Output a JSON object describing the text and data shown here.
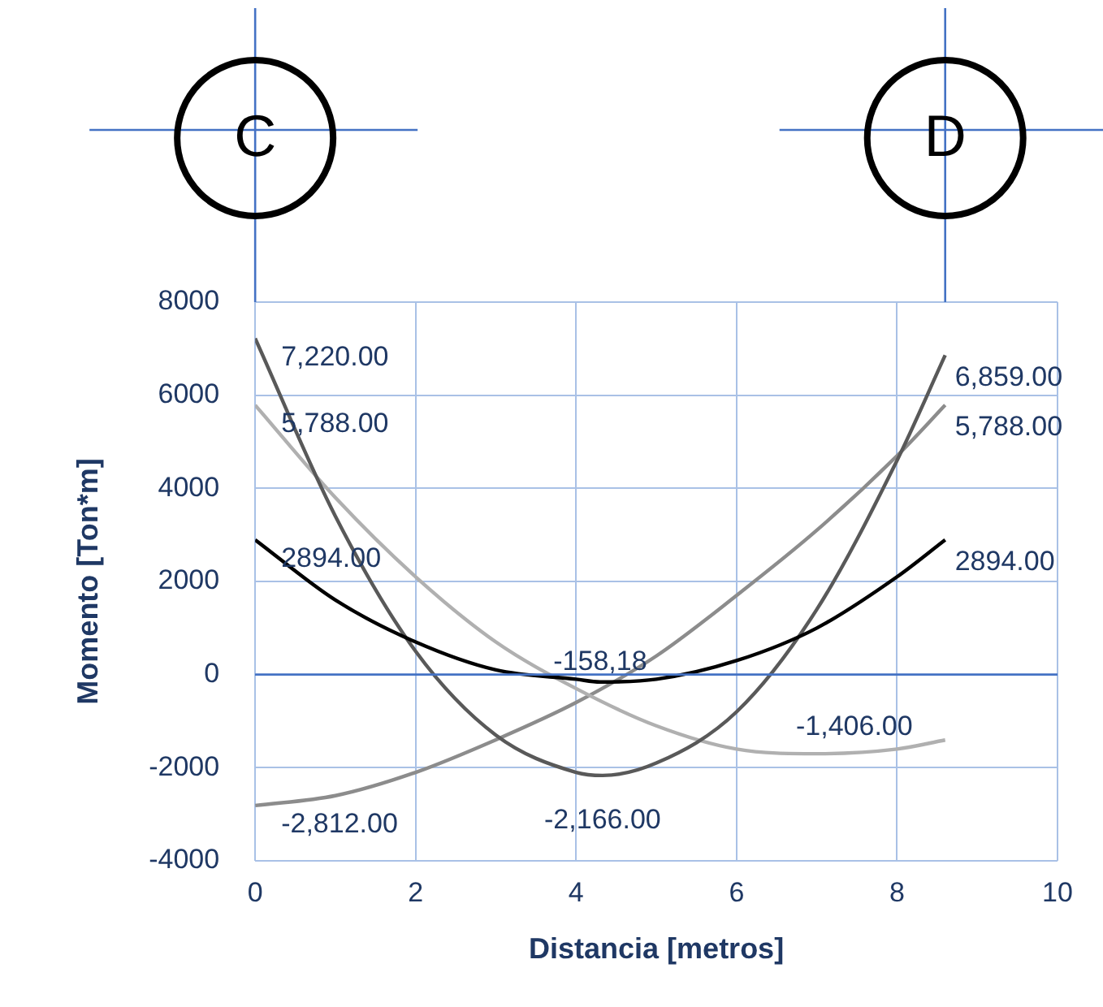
{
  "chart_data": {
    "type": "line",
    "xlabel": "Distancia [metros]",
    "ylabel": "Momento [Ton*m]",
    "xlim": [
      0,
      10
    ],
    "xticks": [
      0,
      2,
      4,
      6,
      8,
      10
    ],
    "ylim": [
      -4000,
      8000
    ],
    "yticks": [
      -4000,
      -2000,
      0,
      2000,
      4000,
      6000,
      8000
    ],
    "grid": true,
    "legend": false,
    "marker": "none",
    "line_style": "solid",
    "ref_lines": [
      {
        "axis": "x",
        "value": 0,
        "label": "C"
      },
      {
        "axis": "x",
        "value": 8.6,
        "label": "D"
      },
      {
        "axis": "y",
        "value": 0,
        "color": "#4472c4"
      }
    ],
    "series": [
      {
        "color": "#000000",
        "x": [
          0,
          1,
          2,
          3,
          4,
          4.3,
          5,
          6,
          7,
          8,
          8.6
        ],
        "values": [
          2894,
          1600,
          700,
          100,
          -100,
          -158.18,
          -100,
          300,
          1000,
          2100,
          2894
        ],
        "value_labels": [
          "2894.00",
          null,
          null,
          null,
          null,
          "-158,18",
          null,
          null,
          null,
          null,
          "2894.00"
        ]
      },
      {
        "color": "#595959",
        "x": [
          0,
          1,
          2,
          3,
          4,
          4.33,
          5,
          6,
          7,
          8,
          8.6
        ],
        "values": [
          7220,
          3400,
          500,
          -1300,
          -2100,
          -2166,
          -1900,
          -800,
          1400,
          4600,
          6859
        ],
        "value_labels": [
          "7,220.00",
          null,
          null,
          null,
          null,
          "-2,166.00",
          null,
          null,
          null,
          null,
          "6,859.00"
        ]
      },
      {
        "color": "#b0b0b0",
        "x": [
          0,
          1,
          2,
          3,
          4,
          5,
          6,
          7,
          8,
          8.6
        ],
        "values": [
          5788,
          3800,
          2100,
          700,
          -300,
          -1100,
          -1600,
          -1700,
          -1600,
          -1406
        ],
        "value_labels": [
          "5,788.00",
          null,
          null,
          null,
          null,
          null,
          null,
          null,
          null,
          "-1,406.00"
        ]
      },
      {
        "color": "#8c8c8c",
        "x": [
          0,
          1,
          2,
          3,
          4,
          5,
          6,
          7,
          8,
          8.6
        ],
        "values": [
          -2812,
          -2600,
          -2100,
          -1400,
          -600,
          400,
          1700,
          3100,
          4700,
          5788
        ],
        "value_labels": [
          "-2,812.00",
          null,
          null,
          null,
          null,
          null,
          null,
          null,
          null,
          "5,788.00"
        ]
      }
    ]
  }
}
